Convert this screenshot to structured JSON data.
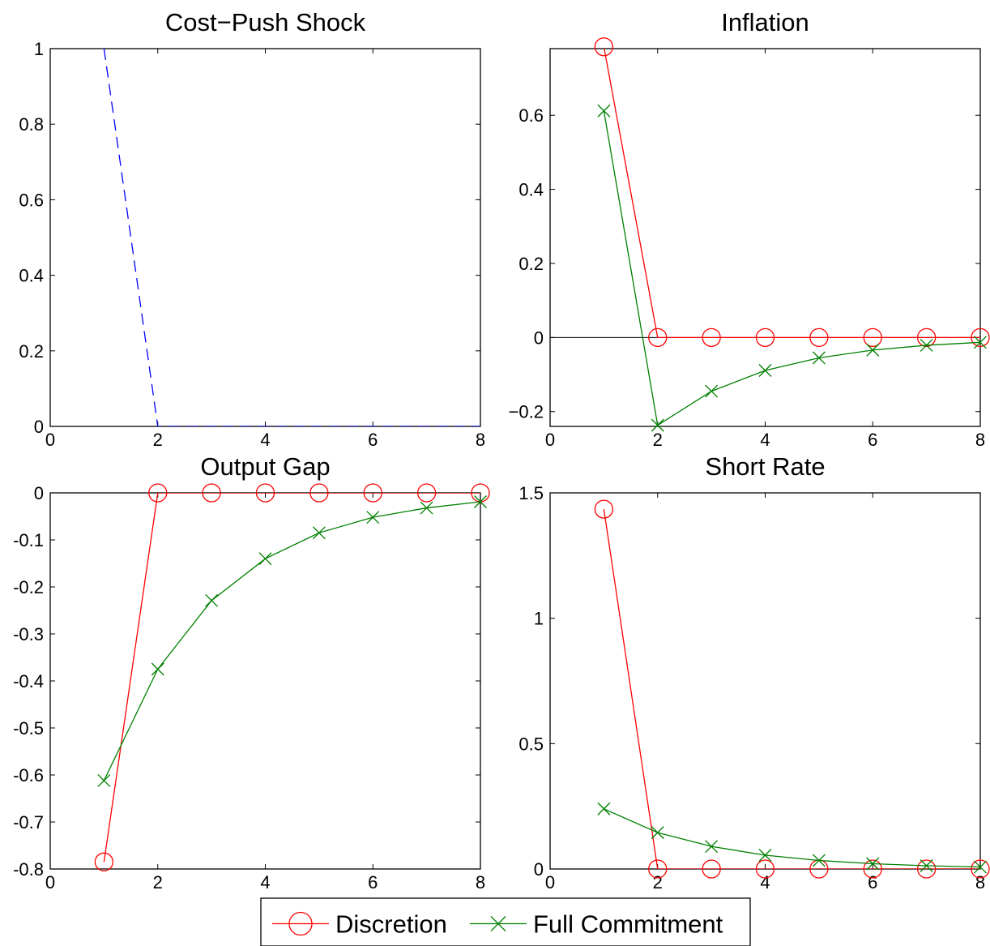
{
  "chart_data": [
    {
      "type": "line",
      "title": "Cost−Push Shock",
      "xlim": [
        0,
        8
      ],
      "ylim": [
        0,
        1
      ],
      "xticks": [
        "0",
        "2",
        "4",
        "6",
        "8"
      ],
      "yticks": [
        "0",
        "0.2",
        "0.4",
        "0.6",
        "0.8",
        "1"
      ],
      "series": [
        {
          "x": [
            1,
            2,
            3,
            4,
            5,
            6,
            7,
            8
          ],
          "values": [
            1,
            0,
            0,
            0,
            0,
            0,
            0,
            0
          ],
          "color": "#0000ff",
          "line_style": "dashed",
          "marker": "none"
        }
      ]
    },
    {
      "type": "line",
      "title": "Inflation",
      "xlim": [
        0,
        8
      ],
      "ylim": [
        -0.24,
        0.78
      ],
      "xticks": [
        "0",
        "2",
        "4",
        "6",
        "8"
      ],
      "yticks": [
        "−0.2",
        "0",
        "0.2",
        "0.4",
        "0.6"
      ],
      "zero_line": true,
      "series": [
        {
          "name": "Discretion",
          "x": [
            1,
            2,
            3,
            4,
            5,
            6,
            7,
            8
          ],
          "values": [
            0.785,
            0,
            0,
            0,
            0,
            0,
            0,
            0
          ],
          "color": "#ff0000",
          "marker": "circle"
        },
        {
          "name": "Full Commitment",
          "x": [
            1,
            2,
            3,
            4,
            5,
            6,
            7,
            8
          ],
          "values": [
            0.612,
            -0.237,
            -0.145,
            -0.089,
            -0.055,
            -0.034,
            -0.021,
            -0.013
          ],
          "color": "#008000",
          "marker": "x"
        }
      ]
    },
    {
      "type": "line",
      "title": "Output Gap",
      "xlim": [
        0,
        8
      ],
      "ylim": [
        -0.8,
        0
      ],
      "xticks": [
        "0",
        "2",
        "4",
        "6",
        "8"
      ],
      "yticks": [
        "-0.8",
        "-0.7",
        "-0.6",
        "-0.5",
        "-0.4",
        "-0.3",
        "-0.2",
        "-0.1",
        "0"
      ],
      "series": [
        {
          "name": "Discretion",
          "x": [
            1,
            2,
            3,
            4,
            5,
            6,
            7,
            8
          ],
          "values": [
            -0.785,
            0,
            0,
            0,
            0,
            0,
            0,
            0
          ],
          "color": "#ff0000",
          "marker": "circle"
        },
        {
          "name": "Full Commitment",
          "x": [
            1,
            2,
            3,
            4,
            5,
            6,
            7,
            8
          ],
          "values": [
            -0.612,
            -0.375,
            -0.229,
            -0.14,
            -0.085,
            -0.052,
            -0.032,
            -0.019
          ],
          "color": "#008000",
          "marker": "x"
        }
      ]
    },
    {
      "type": "line",
      "title": "Short Rate",
      "xlim": [
        0,
        8
      ],
      "ylim": [
        0,
        1.5
      ],
      "xticks": [
        "0",
        "2",
        "4",
        "6",
        "8"
      ],
      "yticks": [
        "0",
        "0.5",
        "1",
        "1.5"
      ],
      "series": [
        {
          "name": "Discretion",
          "x": [
            1,
            2,
            3,
            4,
            5,
            6,
            7,
            8
          ],
          "values": [
            1.435,
            0,
            0,
            0,
            0,
            0,
            0,
            0
          ],
          "color": "#ff0000",
          "marker": "circle"
        },
        {
          "name": "Full Commitment",
          "x": [
            1,
            2,
            3,
            4,
            5,
            6,
            7,
            8
          ],
          "values": [
            0.24,
            0.145,
            0.09,
            0.055,
            0.034,
            0.021,
            0.013,
            0.008
          ],
          "color": "#008000",
          "marker": "x"
        }
      ]
    }
  ],
  "legend": {
    "placement": "bottom-center",
    "items": [
      {
        "label": "Discretion",
        "color": "#ff0000",
        "marker": "circle"
      },
      {
        "label": "Full Commitment",
        "color": "#008000",
        "marker": "x"
      }
    ]
  }
}
